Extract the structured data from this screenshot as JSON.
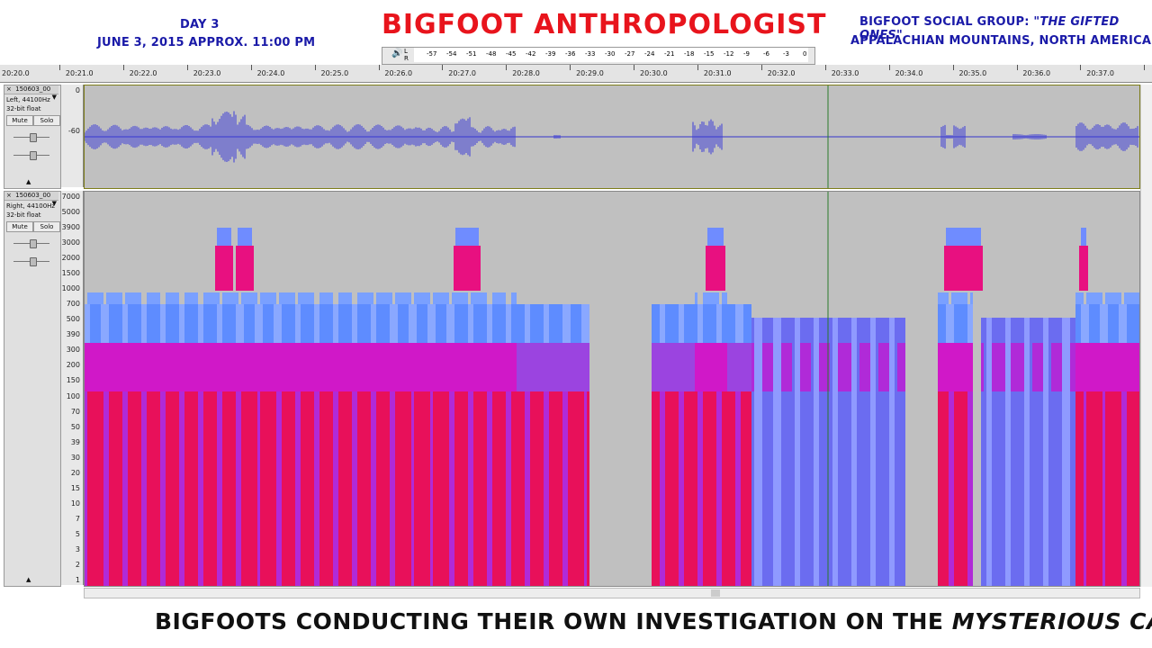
{
  "overlay": {
    "day": "DAY 3",
    "date": "JUNE 3, 2015 APPROX. 11:00 PM",
    "title": "BIGFOOT ANTHROPOLOGIST",
    "social_prefix": "BIGFOOT SOCIAL GROUP:",
    "social_group": "\"THE GIFTED ONES\"",
    "location": "APPALACHIAN MOUNTAINS, NORTH AMERICA",
    "caption_prefix": "BIGFOOTS CONDUCTING THEIR OWN INVESTIGATION ON THE",
    "caption_italic": "MYSTERIOUS CASE"
  },
  "meter": {
    "speaker_icon": "speaker-icon",
    "channels": [
      "L",
      "R"
    ],
    "scale": [
      "-57",
      "-54",
      "-51",
      "-48",
      "-45",
      "-42",
      "-39",
      "-36",
      "-33",
      "-30",
      "-27",
      "-24",
      "-21",
      "-18",
      "-15",
      "-12",
      "-9",
      "-6",
      "-3",
      "0"
    ]
  },
  "ruler": {
    "labels": [
      "20:20.0",
      "20:21.0",
      "20:22.0",
      "20:23.0",
      "20:24.0",
      "20:25.0",
      "20:26.0",
      "20:27.0",
      "20:28.0",
      "20:29.0",
      "20:30.0",
      "20:31.0",
      "20:32.0",
      "20:33.0",
      "20:34.0",
      "20:35.0",
      "20:36.0",
      "20:37.0"
    ]
  },
  "tracks": [
    {
      "name": "150603_00",
      "channel": "Left, 44100Hz",
      "format": "32-bit float",
      "mute": "Mute",
      "solo": "Solo",
      "scale": [
        "0",
        "-60"
      ]
    },
    {
      "name": "150603_00",
      "channel": "Right, 44100Hz",
      "format": "32-bit float",
      "mute": "Mute",
      "solo": "Solo",
      "scale": [
        "7000",
        "5000",
        "3900",
        "3000",
        "2000",
        "1500",
        "1000",
        "700",
        "500",
        "390",
        "300",
        "200",
        "150",
        "100",
        "70",
        "50",
        "39",
        "30",
        "20",
        "15",
        "10",
        "7",
        "5",
        "3",
        "2",
        "1"
      ]
    }
  ],
  "colors": {
    "title_red": "#e8141c",
    "caption_blue": "#1a1aa8",
    "waveform": "#3333cc",
    "spec_red": "#e8105a",
    "spec_blue": "#5e8cff",
    "spec_magenta": "#c020d0",
    "track_bg": "#c0c0c0"
  }
}
